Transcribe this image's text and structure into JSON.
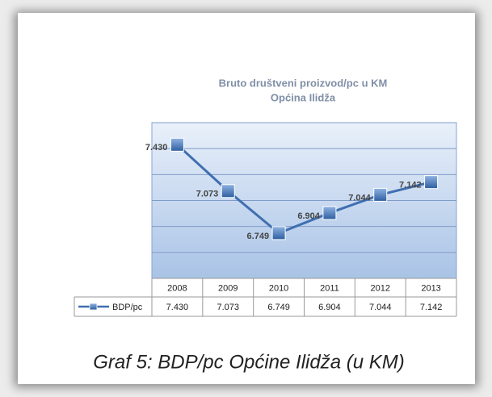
{
  "chart_data": {
    "type": "line",
    "title": "Bruto društveni proizvod/pc u KM",
    "subtitle": "Općina Ilidža",
    "caption": "Graf 5: BDP/pc Općine Ilidža (u KM)",
    "categories": [
      "2008",
      "2009",
      "2010",
      "2011",
      "2012",
      "2013"
    ],
    "series": [
      {
        "name": "BDP/pc",
        "color": "#3f6fb0",
        "values": [
          7430,
          7073,
          6749,
          6904,
          7044,
          7142
        ],
        "value_labels": [
          "7.430",
          "7.073",
          "6.749",
          "6.904",
          "7.044",
          "7.142"
        ]
      }
    ],
    "ylim": [
      6400,
      7600
    ],
    "yticks": [
      6400,
      6600,
      6800,
      7000,
      7200,
      7400,
      7600
    ],
    "grid": true
  }
}
